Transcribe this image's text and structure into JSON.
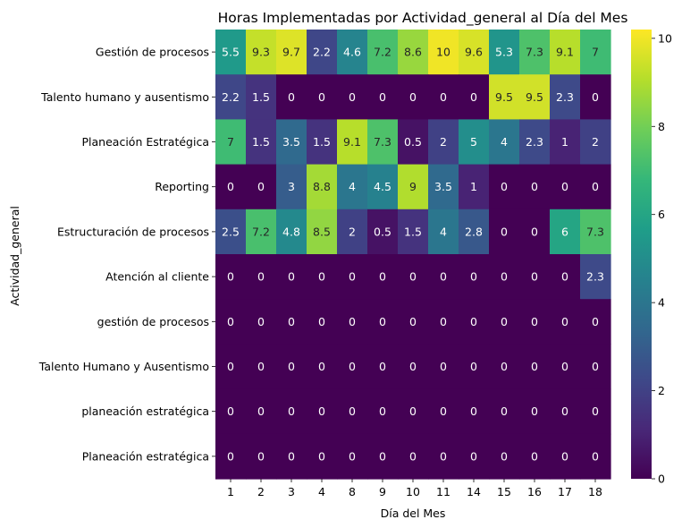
{
  "chart_data": {
    "type": "heatmap",
    "title": "Horas Implementadas por Actividad_general al Día del Mes",
    "xlabel": "Día del Mes",
    "ylabel": "Actividad_general",
    "x_categories": [
      "1",
      "2",
      "3",
      "4",
      "8",
      "9",
      "10",
      "11",
      "14",
      "15",
      "16",
      "17",
      "18"
    ],
    "y_categories": [
      "Gestión de procesos",
      "Talento humano y ausentismo",
      "Planeación Estratégica",
      "Reporting",
      "Estructuración de procesos",
      "Atención al cliente",
      "gestión de procesos",
      "Talento Humano y Ausentismo",
      "planeación estratégica",
      "Planeación estratégica"
    ],
    "values": [
      [
        5.5,
        9.3,
        9.7,
        2.2,
        4.6,
        7.2,
        8.6,
        10,
        9.6,
        5.3,
        7.3,
        9.1,
        7
      ],
      [
        2.2,
        1.5,
        0,
        0,
        0,
        0,
        0,
        0,
        0,
        9.5,
        9.5,
        2.3,
        0
      ],
      [
        7,
        1.5,
        3.5,
        1.5,
        9.1,
        7.3,
        0.5,
        2,
        5,
        4,
        2.3,
        1,
        2
      ],
      [
        0,
        0,
        3,
        8.8,
        4,
        4.5,
        9,
        3.5,
        1,
        0,
        0,
        0,
        0
      ],
      [
        2.5,
        7.2,
        4.8,
        8.5,
        2,
        0.5,
        1.5,
        4,
        2.8,
        0,
        0,
        6,
        7.3
      ],
      [
        0,
        0,
        0,
        0,
        0,
        0,
        0,
        0,
        0,
        0,
        0,
        0,
        2.3
      ],
      [
        0,
        0,
        0,
        0,
        0,
        0,
        0,
        0,
        0,
        0,
        0,
        0,
        0
      ],
      [
        0,
        0,
        0,
        0,
        0,
        0,
        0,
        0,
        0,
        0,
        0,
        0,
        0
      ],
      [
        0,
        0,
        0,
        0,
        0,
        0,
        0,
        0,
        0,
        0,
        0,
        0,
        0
      ],
      [
        0,
        0,
        0,
        0,
        0,
        0,
        0,
        0,
        0,
        0,
        0,
        0,
        0
      ]
    ],
    "colorbar": {
      "colormap": "viridis",
      "range": [
        0,
        10.2
      ],
      "ticks": [
        "0",
        "2",
        "4",
        "6",
        "8",
        "10"
      ]
    },
    "legend": "colorbar-right",
    "grid": false
  }
}
